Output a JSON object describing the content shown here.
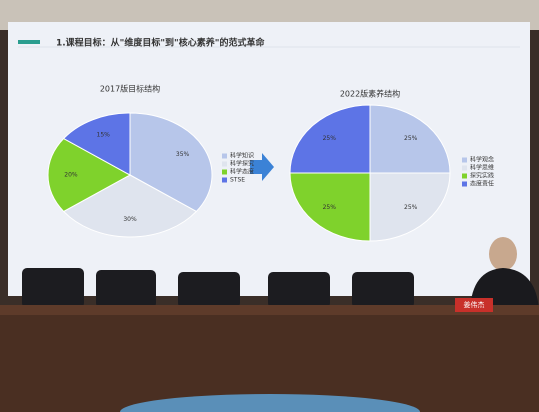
{
  "slide_title": "1.课程目标：从\"维度目标\"到\"核心素养\"的范式革命",
  "nameplate": "姜伟杰",
  "chart_data": [
    {
      "type": "pie",
      "title": "2017版目标结构",
      "categories": [
        "科学知识",
        "科学探究",
        "科学态度",
        "STSE"
      ],
      "values": [
        35,
        30,
        20,
        15
      ],
      "value_labels": [
        "35%",
        "30%",
        "20%",
        "15%"
      ],
      "colors": [
        "#b7c6ea",
        "#dfe4ee",
        "#7fd22c",
        "#5d74e6"
      ],
      "legend": "right"
    },
    {
      "type": "pie",
      "title": "2022版素养结构",
      "categories": [
        "科学观念",
        "科学思维",
        "探究实践",
        "态度责任"
      ],
      "values": [
        25,
        25,
        25,
        25
      ],
      "value_labels": [
        "25%",
        "25%",
        "25%",
        "25%"
      ],
      "colors": [
        "#b7c6ea",
        "#dfe4ee",
        "#7fd22c",
        "#5d74e6"
      ],
      "legend": "right"
    }
  ]
}
